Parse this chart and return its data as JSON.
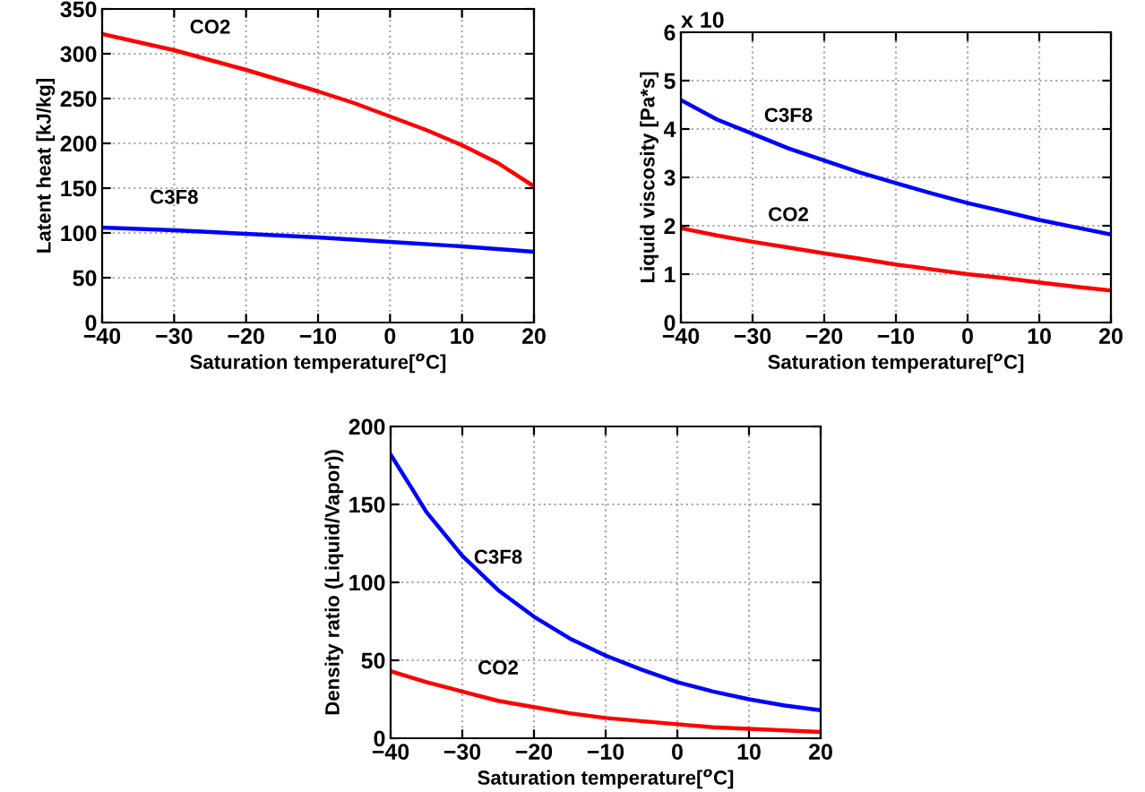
{
  "chart_data": [
    {
      "type": "line",
      "xlabel": "Saturation temperature[$^{o}$C]",
      "ylabel": "Latent heat [kJ/kg]",
      "xlim": [
        -40,
        20
      ],
      "xticks": [
        -40,
        -30,
        -20,
        -10,
        0,
        10,
        20
      ],
      "ylim": [
        0,
        350
      ],
      "yticks": [
        0,
        50,
        100,
        150,
        200,
        250,
        300,
        350
      ],
      "grid": true,
      "line_style": "solid",
      "series": [
        {
          "name": "CO2",
          "color": "#ff0000",
          "x": [
            -40,
            -35,
            -30,
            -25,
            -20,
            -15,
            -10,
            -5,
            0,
            5,
            10,
            15,
            20
          ],
          "values": [
            322,
            313,
            304,
            293,
            282,
            270,
            258,
            245,
            230,
            215,
            198,
            178,
            152
          ]
        },
        {
          "name": "C3F8",
          "color": "#0000ff",
          "x": [
            -40,
            -30,
            -20,
            -10,
            0,
            10,
            20
          ],
          "values": [
            106,
            103,
            99,
            95,
            90,
            85,
            79
          ]
        }
      ]
    },
    {
      "type": "line",
      "xlabel": "Saturation temperature[$^{o}$C]",
      "ylabel": "Liquid viscosity [Pa*s]",
      "annotations": [
        "x 10"
      ],
      "xlim": [
        -40,
        20
      ],
      "xticks": [
        -40,
        -30,
        -20,
        -10,
        0,
        10,
        20
      ],
      "ylim": [
        0,
        6
      ],
      "yticks": [
        0,
        1,
        2,
        3,
        4,
        5,
        6
      ],
      "grid": true,
      "line_style": "solid",
      "series": [
        {
          "name": "C3F8",
          "color": "#0000ff",
          "x": [
            -40,
            -35,
            -30,
            -25,
            -20,
            -15,
            -10,
            -5,
            0,
            5,
            10,
            15,
            20
          ],
          "values": [
            4.6,
            4.2,
            3.9,
            3.6,
            3.35,
            3.1,
            2.88,
            2.67,
            2.47,
            2.3,
            2.12,
            1.97,
            1.82
          ]
        },
        {
          "name": "CO2",
          "color": "#ff0000",
          "x": [
            -40,
            -35,
            -30,
            -25,
            -20,
            -15,
            -10,
            -5,
            0,
            5,
            10,
            15,
            20
          ],
          "values": [
            1.95,
            1.8,
            1.67,
            1.55,
            1.43,
            1.32,
            1.2,
            1.1,
            1.0,
            0.92,
            0.83,
            0.74,
            0.66
          ]
        }
      ]
    },
    {
      "type": "line",
      "xlabel": "Saturation temperature[$^{o}$C]",
      "ylabel": "Density ratio (Liquid/Vapor))",
      "xlim": [
        -40,
        20
      ],
      "xticks": [
        -40,
        -30,
        -20,
        -10,
        0,
        10,
        20
      ],
      "ylim": [
        0,
        200
      ],
      "yticks": [
        0,
        50,
        100,
        150,
        200
      ],
      "grid": true,
      "line_style": "solid",
      "series": [
        {
          "name": "C3F8",
          "color": "#0000ff",
          "x": [
            -40,
            -37,
            -35,
            -30,
            -25,
            -20,
            -15,
            -10,
            -5,
            0,
            5,
            10,
            15,
            20
          ],
          "values": [
            182,
            160,
            145,
            117,
            95,
            78,
            64,
            53,
            44,
            36,
            30,
            25,
            21,
            18
          ]
        },
        {
          "name": "CO2",
          "color": "#ff0000",
          "x": [
            -40,
            -35,
            -30,
            -25,
            -20,
            -15,
            -10,
            -5,
            0,
            5,
            10,
            15,
            20
          ],
          "values": [
            43,
            36,
            30,
            24,
            20,
            16,
            13,
            11,
            9,
            7,
            6,
            5,
            4
          ]
        }
      ]
    }
  ]
}
